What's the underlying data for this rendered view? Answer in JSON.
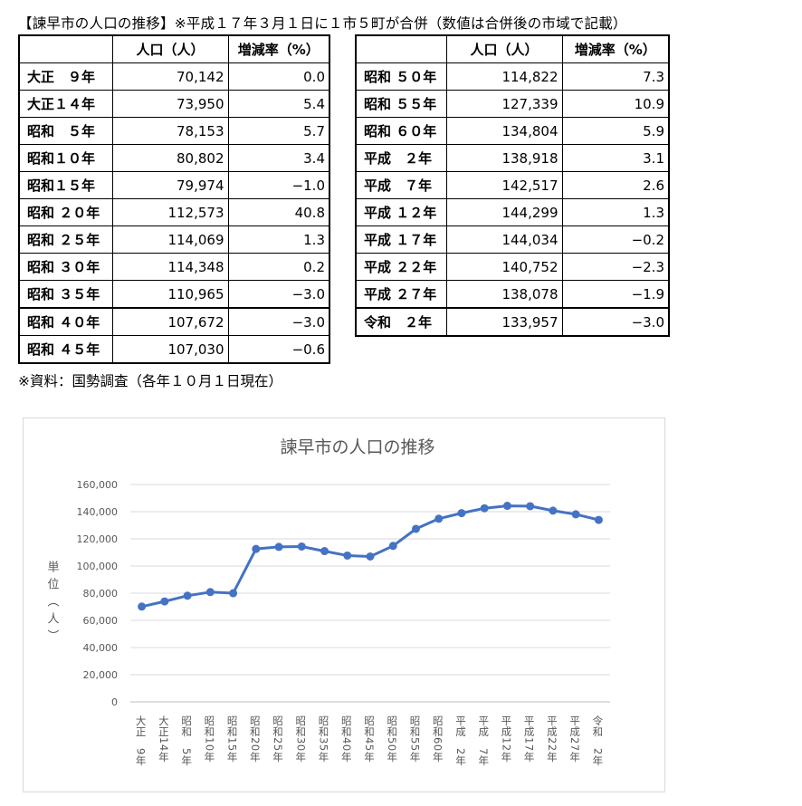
{
  "heading": "【諫早市の人口の推移】※平成１７年３月１日に１市５町が合併（数値は合併後の市域で記載）",
  "source": "※資料：国勢調査（各年１０月１日現在）",
  "table_left": {
    "headers": [
      "",
      "人口（人）",
      "増減率（%）"
    ],
    "rows": [
      {
        "era": "大正　９年",
        "population": "70,142",
        "rate": "0.0"
      },
      {
        "era": "大正１４年",
        "population": "73,950",
        "rate": "5.4"
      },
      {
        "era": "昭和　５年",
        "population": "78,153",
        "rate": "5.7"
      },
      {
        "era": "昭和１０年",
        "population": "80,802",
        "rate": "3.4"
      },
      {
        "era": "昭和１５年",
        "population": "79,974",
        "rate": "−1.0"
      },
      {
        "era": "昭和 ２０年",
        "population": "112,573",
        "rate": "40.8"
      },
      {
        "era": "昭和 ２５年",
        "population": "114,069",
        "rate": "1.3"
      },
      {
        "era": "昭和 ３０年",
        "population": "114,348",
        "rate": "0.2"
      },
      {
        "era": "昭和 ３５年",
        "population": "110,965",
        "rate": "−3.0"
      },
      {
        "era": "昭和 ４０年",
        "population": "107,672",
        "rate": "−3.0"
      },
      {
        "era": "昭和 ４５年",
        "population": "107,030",
        "rate": "−0.6"
      }
    ]
  },
  "table_right": {
    "headers": [
      "",
      "人口（人）",
      "増減率（%）"
    ],
    "rows": [
      {
        "era": "昭和 ５０年",
        "population": "114,822",
        "rate": "7.3"
      },
      {
        "era": "昭和 ５５年",
        "population": "127,339",
        "rate": "10.9"
      },
      {
        "era": "昭和 ６０年",
        "population": "134,804",
        "rate": "5.9"
      },
      {
        "era": "平成　２年",
        "population": "138,918",
        "rate": "3.1"
      },
      {
        "era": "平成　７年",
        "population": "142,517",
        "rate": "2.6"
      },
      {
        "era": "平成 １２年",
        "population": "144,299",
        "rate": "1.3"
      },
      {
        "era": "平成 １７年",
        "population": "144,034",
        "rate": "−0.2"
      },
      {
        "era": "平成 ２２年",
        "population": "140,752",
        "rate": "−2.3"
      },
      {
        "era": "平成 ２７年",
        "population": "138,078",
        "rate": "−1.9"
      },
      {
        "era": "令和　２年",
        "population": "133,957",
        "rate": "−3.0"
      }
    ]
  },
  "chart_data": {
    "type": "line",
    "title": "諫早市の人口の推移",
    "ylabel": "単位（人）",
    "xlabel": "",
    "ylim": [
      0,
      160000
    ],
    "yticks": [
      "0",
      "20,000",
      "40,000",
      "60,000",
      "80,000",
      "100,000",
      "120,000",
      "140,000",
      "160,000"
    ],
    "categories": [
      "大正 9年",
      "大正14年",
      "昭和 5年",
      "昭和10年",
      "昭和15年",
      "昭和20年",
      "昭和25年",
      "昭和30年",
      "昭和35年",
      "昭和40年",
      "昭和45年",
      "昭和50年",
      "昭和55年",
      "昭和60年",
      "平成 2年",
      "平成 7年",
      "平成12年",
      "平成17年",
      "平成22年",
      "平成27年",
      "令和 2年"
    ],
    "category_labels": [
      "大正　9年",
      "大正14年",
      "昭和　5年",
      "昭和10年",
      "昭和15年",
      "昭和20年",
      "昭和25年",
      "昭和30年",
      "昭和35年",
      "昭和40年",
      "昭和45年",
      "昭和50年",
      "昭和55年",
      "昭和60年",
      "平成　2年",
      "平成　7年",
      "平成12年",
      "平成17年",
      "平成22年",
      "平成27年",
      "令和　2年"
    ],
    "values": [
      70142,
      73950,
      78153,
      80802,
      79974,
      112573,
      114069,
      114348,
      110965,
      107672,
      107030,
      114822,
      127339,
      134804,
      138918,
      142517,
      144299,
      144034,
      140752,
      138078,
      133957
    ],
    "line_color": "#4472c4",
    "grid": true,
    "legend": "none"
  }
}
